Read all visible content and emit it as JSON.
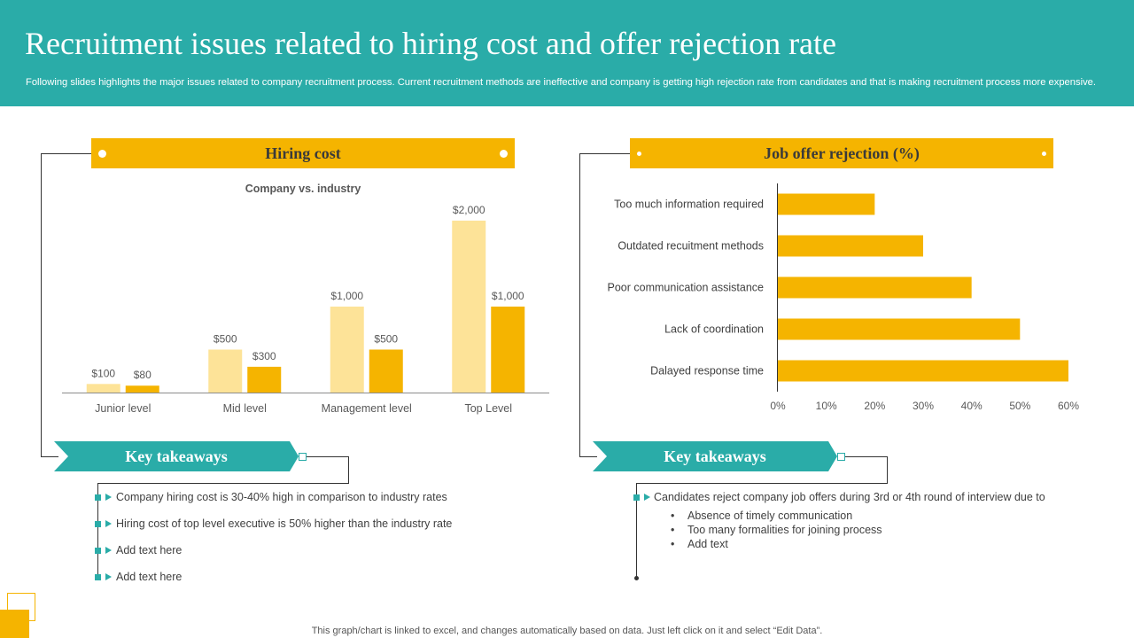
{
  "header": {
    "title": "Recruitment issues related to hiring cost and offer rejection rate",
    "subtitle": "Following slides highlights the major issues related to company recruitment process. Current recruitment methods are ineffective and company is getting high rejection rate from candidates and that is making recruitment process more expensive."
  },
  "left": {
    "banner": "Hiring cost",
    "takeaways_label": "Key takeaways",
    "takeaways": [
      "Company hiring cost is 30-40% high in comparison to industry rates",
      "Hiring cost of top level executive is 50% higher than the industry rate",
      "Add text here",
      "Add text here"
    ]
  },
  "right": {
    "banner": "Job offer rejection (%)",
    "takeaways_label": "Key takeaways",
    "takeaway_main": "Candidates reject company job offers during 3rd or 4th round of interview due to",
    "sub_bullets": [
      "Absence of timely communication",
      "Too many formalities for joining process",
      "Add text"
    ]
  },
  "footer": "This graph/chart is linked to excel, and changes automatically based on data. Just left click on it and select “Edit Data”.",
  "colors": {
    "teal": "#2aaca8",
    "gold": "#f5b400",
    "light_gold": "#fde398"
  },
  "chart_data": [
    {
      "type": "bar",
      "title": "Company vs. industry",
      "categories": [
        "Junior level",
        "Mid level",
        "Management level",
        "Top Level"
      ],
      "series": [
        {
          "values": [
            100,
            500,
            1000,
            2000
          ],
          "labels": [
            "$100",
            "$500",
            "$1,000",
            "$2,000"
          ],
          "color": "#fde398"
        },
        {
          "values": [
            80,
            300,
            500,
            1000
          ],
          "labels": [
            "$80",
            "$300",
            "$500",
            "$1,000"
          ],
          "color": "#f5b400"
        }
      ],
      "ylim": [
        0,
        2000
      ],
      "grid": false
    },
    {
      "type": "bar",
      "orientation": "horizontal",
      "categories": [
        "Too much information required",
        "Outdated recuitment methods",
        "Poor communication assistance",
        "Lack of coordination",
        "Dalayed response time"
      ],
      "values": [
        20,
        30,
        40,
        50,
        60
      ],
      "xticks": [
        "0%",
        "10%",
        "20%",
        "30%",
        "40%",
        "50%",
        "60%"
      ],
      "xlim": [
        0,
        60
      ],
      "color": "#f5b400",
      "grid": false
    }
  ]
}
